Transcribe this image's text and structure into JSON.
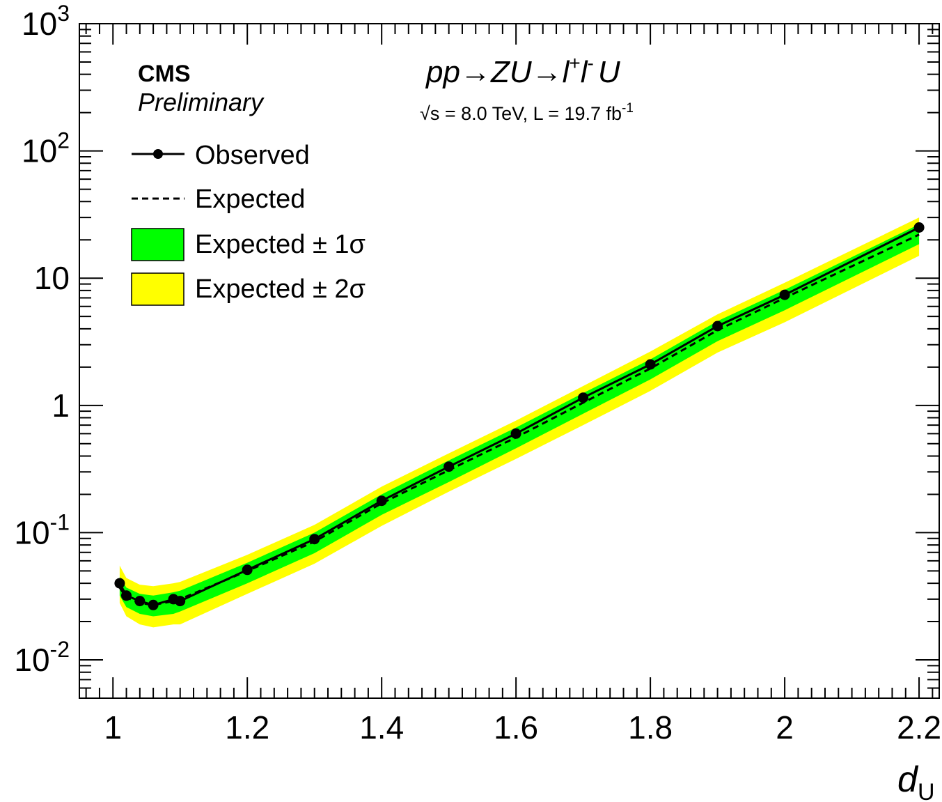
{
  "header": {
    "cms_label": "CMS",
    "preliminary_label": "Preliminary",
    "process": "pp→ZU→l+l-U",
    "energy_lumi": "√s = 8.0 TeV, L = 19.7 fb-1"
  },
  "legend": {
    "observed": "Observed",
    "expected": "Expected",
    "one_sigma": "Expected ± 1σ",
    "two_sigma": "Expected ± 2σ"
  },
  "colors": {
    "one_sigma_band": "#00ff00",
    "two_sigma_band": "#ffff00",
    "observed_line": "#000000",
    "expected_line": "#000000"
  },
  "chart_data": {
    "type": "line",
    "title": "",
    "xlabel": "dU",
    "ylabel": "",
    "xlim": [
      0.95,
      2.23
    ],
    "ylim": [
      0.005,
      1000
    ],
    "yscale": "log",
    "x_ticks": [
      1,
      1.2,
      1.4,
      1.6,
      1.8,
      2,
      2.2
    ],
    "x_tick_labels": [
      "1",
      "1.2",
      "1.4",
      "1.6",
      "1.8",
      "2",
      "2.2"
    ],
    "y_ticks": [
      0.01,
      0.1,
      1,
      10,
      100,
      1000
    ],
    "y_tick_labels": [
      {
        "base": "10",
        "exp": "-2"
      },
      {
        "base": "10",
        "exp": "-1"
      },
      {
        "base": "1",
        "exp": ""
      },
      {
        "base": "10",
        "exp": ""
      },
      {
        "base": "10",
        "exp": "2"
      },
      {
        "base": "10",
        "exp": "3"
      }
    ],
    "x": [
      1.01,
      1.02,
      1.04,
      1.06,
      1.09,
      1.1,
      1.2,
      1.3,
      1.4,
      1.5,
      1.6,
      1.7,
      1.8,
      1.9,
      2.0,
      2.2
    ],
    "series": [
      {
        "name": "Observed",
        "values": [
          0.04,
          0.032,
          0.029,
          0.027,
          0.03,
          0.029,
          0.051,
          0.089,
          0.178,
          0.33,
          0.6,
          1.15,
          2.1,
          4.2,
          7.4,
          25.0
        ]
      },
      {
        "name": "Expected",
        "values": [
          0.037,
          0.031,
          0.028,
          0.027,
          0.029,
          0.03,
          0.05,
          0.085,
          0.17,
          0.31,
          0.56,
          1.05,
          1.95,
          3.9,
          7.0,
          22.0
        ]
      }
    ],
    "bands": [
      {
        "name": "Expected ± 2σ",
        "low": [
          0.028,
          0.022,
          0.019,
          0.018,
          0.019,
          0.019,
          0.033,
          0.057,
          0.113,
          0.21,
          0.38,
          0.7,
          1.3,
          2.6,
          4.5,
          15.0
        ],
        "high": [
          0.055,
          0.044,
          0.039,
          0.038,
          0.04,
          0.041,
          0.067,
          0.115,
          0.23,
          0.42,
          0.76,
          1.42,
          2.65,
          5.2,
          9.2,
          30.0
        ]
      },
      {
        "name": "Expected ± 1σ",
        "low": [
          0.032,
          0.026,
          0.023,
          0.022,
          0.023,
          0.024,
          0.04,
          0.069,
          0.138,
          0.25,
          0.46,
          0.86,
          1.6,
          3.2,
          5.6,
          18.5
        ],
        "high": [
          0.045,
          0.037,
          0.033,
          0.032,
          0.034,
          0.035,
          0.058,
          0.1,
          0.2,
          0.37,
          0.67,
          1.25,
          2.3,
          4.6,
          8.1,
          26.5
        ]
      }
    ],
    "grid": false,
    "legend_position": "top-left"
  }
}
